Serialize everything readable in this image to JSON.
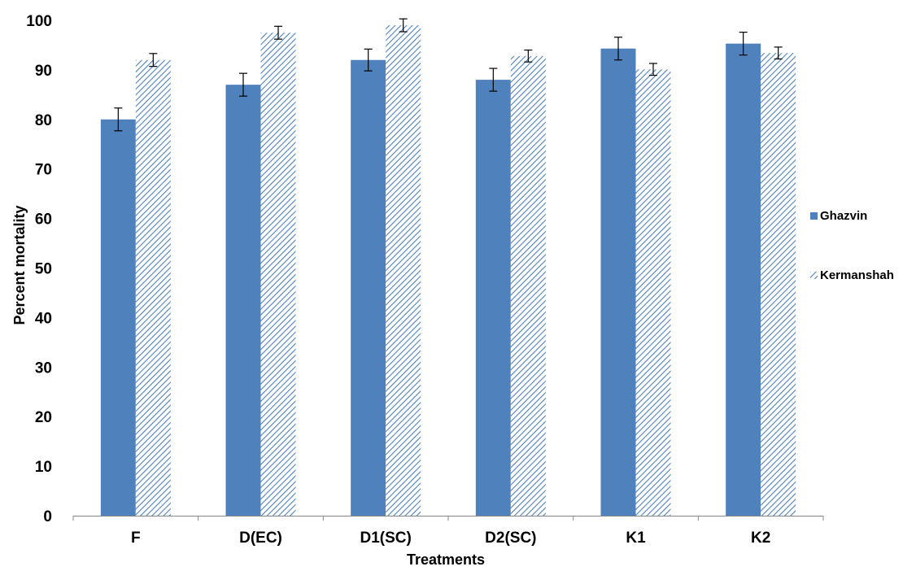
{
  "chart_data": {
    "type": "bar",
    "title": "",
    "xlabel": "Treatments",
    "ylabel": "Percent mortality",
    "ylim": [
      0,
      100
    ],
    "yticks": [
      0,
      10,
      20,
      30,
      40,
      50,
      60,
      70,
      80,
      90,
      100
    ],
    "categories": [
      "F",
      "D(EC)",
      "D1(SC)",
      "D2(SC)",
      "K1",
      "K2"
    ],
    "grid": false,
    "legend_position": "right",
    "series": [
      {
        "name": "Ghazvin",
        "values": [
          80,
          87,
          92,
          88,
          94.3,
          95.3
        ],
        "errors": [
          2.3,
          2.3,
          2.2,
          2.3,
          2.3,
          2.3
        ],
        "color": "#4f81bd",
        "fill": "solid"
      },
      {
        "name": "Kermanshah",
        "values": [
          92,
          97.5,
          99,
          92.8,
          90.1,
          93.4
        ],
        "errors": [
          1.3,
          1.3,
          1.3,
          1.2,
          1.2,
          1.2
        ],
        "color": "#4f81bd",
        "fill": "hatched"
      }
    ]
  }
}
